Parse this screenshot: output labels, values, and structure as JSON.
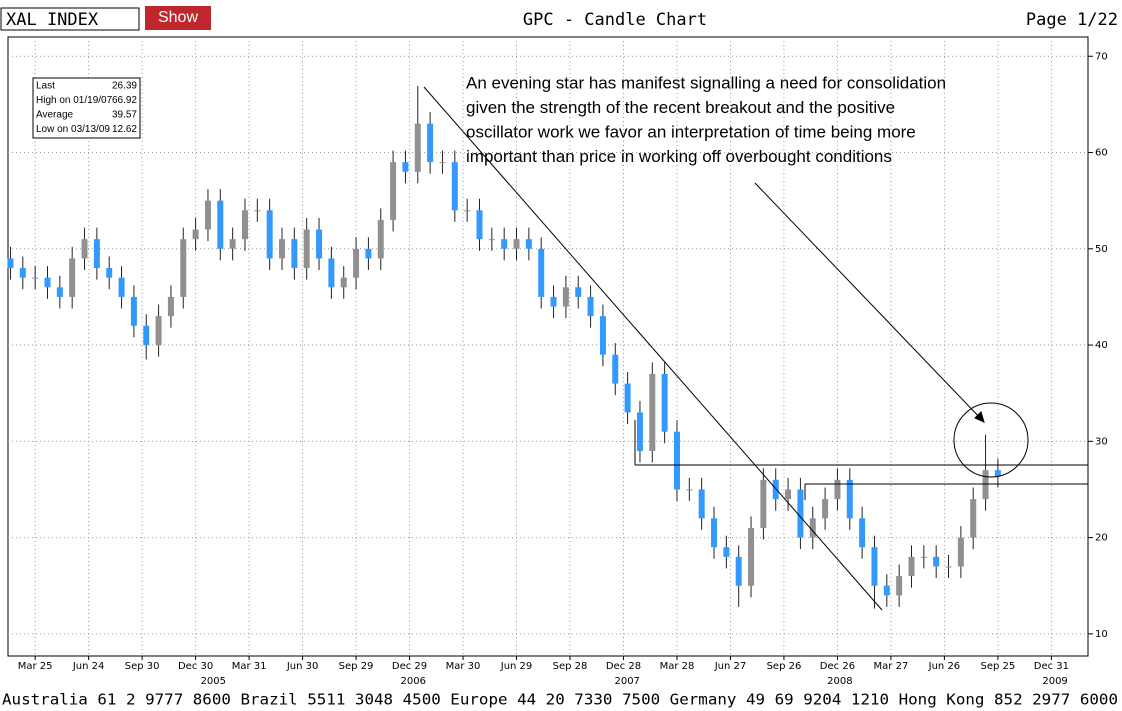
{
  "header": {
    "symbol": "XAL INDEX",
    "button": "Show",
    "title": "GPC - Candle Chart",
    "page": "Page 1/22"
  },
  "footer": "Australia 61 2 9777 8600 Brazil 5511 3048 4500 Europe 44 20 7330 7500 Germany 49 69 9204 1210 Hong Kong 852 2977 6000",
  "chart_data": {
    "type": "candlestick",
    "stats": [
      {
        "label": "Last",
        "value": 26.39
      },
      {
        "label": "High on 01/19/07",
        "value": 66.92
      },
      {
        "label": "Average",
        "value": 39.57
      },
      {
        "label": "Low on 03/13/09",
        "value": 12.62
      }
    ],
    "annotation": [
      "An evening star has manifest signalling a need for consolidation",
      "given the strength of the recent breakout and the positive",
      "oscillator work we favor an interpretation of time being more",
      "important than price in working off overbought conditions"
    ],
    "up_color": "#909090",
    "down_color": "#3399ff",
    "xlim": [
      -6.6,
      255.9
    ],
    "xticks": [
      {
        "value": 0,
        "label": "Mar 25"
      },
      {
        "value": 13,
        "label": "Jun 24"
      },
      {
        "value": 26,
        "label": "Sep 30"
      },
      {
        "value": 39,
        "label": "Dec 30"
      },
      {
        "value": 52,
        "label": "Mar 31"
      },
      {
        "value": 65,
        "label": "Jun 30"
      },
      {
        "value": 78,
        "label": "Sep 29"
      },
      {
        "value": 91,
        "label": "Dec 29"
      },
      {
        "value": 104,
        "label": "Mar 30"
      },
      {
        "value": 117,
        "label": "Jun 29"
      },
      {
        "value": 130,
        "label": "Sep 28"
      },
      {
        "value": 143,
        "label": "Dec 28"
      },
      {
        "value": 156,
        "label": "Mar 28"
      },
      {
        "value": 169,
        "label": "Jun 27"
      },
      {
        "value": 182,
        "label": "Sep 26"
      },
      {
        "value": 195,
        "label": "Dec 26"
      },
      {
        "value": 208,
        "label": "Mar 27"
      },
      {
        "value": 221,
        "label": "Jun 26"
      },
      {
        "value": 234,
        "label": "Sep 25"
      },
      {
        "value": 247,
        "label": "Dec 31"
      }
    ],
    "year_ticks": [
      {
        "value": 43.3,
        "label": "2005"
      },
      {
        "value": 91.9,
        "label": "2006"
      },
      {
        "value": 143.9,
        "label": "2007"
      },
      {
        "value": 195.6,
        "label": "2008"
      },
      {
        "value": 247.9,
        "label": "2009"
      }
    ],
    "ylim": [
      7.7,
      72
    ],
    "yticks": [
      10,
      20,
      30,
      40,
      50,
      60,
      70
    ],
    "grid": true,
    "x": [
      -6,
      -3,
      0,
      3,
      6,
      9,
      12,
      15,
      18,
      21,
      24,
      27,
      30,
      33,
      36,
      39,
      42,
      45,
      48,
      51,
      54,
      57,
      60,
      63,
      66,
      69,
      72,
      75,
      78,
      81,
      84,
      87,
      90,
      93,
      96,
      99,
      102,
      105,
      108,
      111,
      114,
      117,
      120,
      123,
      126,
      129,
      132,
      135,
      138,
      141,
      144,
      147,
      150,
      153,
      156,
      159,
      162,
      165,
      168,
      171,
      174,
      177,
      180,
      183,
      186,
      189,
      192,
      195,
      198,
      201,
      204,
      207,
      210,
      213,
      216,
      219,
      222,
      225,
      228,
      231,
      234
    ],
    "open": [
      49,
      48,
      47,
      47,
      46,
      45,
      49,
      51,
      48,
      47,
      45,
      42,
      40,
      43,
      45,
      51,
      52,
      55,
      50,
      51,
      54,
      54,
      49,
      51,
      48,
      52,
      49,
      46,
      47,
      50,
      49,
      53,
      59,
      58,
      63,
      59,
      59,
      54,
      54,
      51,
      51,
      50,
      51,
      50,
      45,
      44,
      46,
      45,
      43,
      39,
      36,
      33,
      29,
      37,
      31,
      25,
      25,
      22,
      19,
      18,
      15,
      21,
      26,
      24,
      25,
      20,
      22,
      24,
      26,
      22,
      19,
      15,
      14,
      16,
      18,
      18,
      17,
      17,
      20,
      24,
      27
    ],
    "high": [
      50.2,
      49.2,
      48.2,
      48.2,
      47.2,
      50.2,
      52.2,
      52.2,
      49.2,
      48.2,
      46.2,
      43.2,
      44.2,
      46.2,
      52.2,
      53.2,
      56.2,
      56.2,
      52.2,
      55.2,
      55.2,
      55.2,
      52.2,
      52.2,
      53.2,
      53.2,
      50.2,
      48.2,
      51.2,
      51.2,
      54.2,
      60.2,
      60.2,
      66.92,
      64.2,
      60.2,
      60.2,
      55.2,
      55.2,
      52.2,
      52.2,
      52.2,
      52.2,
      51.2,
      46.2,
      47.2,
      47.2,
      46.2,
      44.2,
      40.2,
      37.2,
      34.2,
      38.2,
      38.2,
      32.2,
      26.2,
      26.2,
      23.2,
      20.2,
      19.2,
      22.2,
      27.2,
      27.2,
      26.2,
      26.2,
      23.2,
      25.2,
      27.2,
      27.2,
      23.2,
      20.2,
      16.2,
      17.2,
      19.2,
      19.2,
      19.2,
      18.2,
      21.2,
      25.2,
      30.7,
      28.2
    ],
    "low": [
      46.8,
      45.8,
      45.8,
      44.8,
      43.8,
      43.8,
      47.8,
      46.8,
      45.8,
      43.8,
      40.8,
      38.5,
      38.8,
      41.8,
      43.8,
      49.8,
      50.8,
      48.8,
      48.8,
      49.8,
      52.8,
      47.8,
      47.8,
      46.8,
      46.8,
      47.8,
      44.8,
      44.8,
      45.8,
      47.8,
      47.8,
      51.8,
      56.8,
      56.8,
      57.8,
      57.8,
      52.8,
      52.8,
      49.8,
      49.8,
      48.8,
      48.8,
      48.8,
      43.8,
      42.8,
      42.8,
      43.8,
      41.8,
      37.8,
      34.8,
      31.8,
      27.8,
      27.8,
      29.8,
      23.8,
      23.8,
      20.8,
      17.8,
      16.8,
      12.8,
      13.8,
      19.8,
      22.8,
      22.8,
      18.8,
      18.8,
      20.8,
      22.8,
      20.8,
      17.8,
      12.62,
      12.8,
      12.8,
      14.8,
      16.8,
      15.8,
      15.8,
      15.8,
      18.8,
      22.8,
      25.2
    ],
    "close": [
      48,
      47,
      47,
      46,
      45,
      49,
      51,
      48,
      47,
      45,
      42,
      40,
      43,
      45,
      51,
      52,
      55,
      50,
      51,
      54,
      54,
      49,
      51,
      48,
      52,
      49,
      46,
      47,
      50,
      49,
      53,
      59,
      58,
      63,
      59,
      59,
      54,
      54,
      51,
      51,
      50,
      51,
      50,
      45,
      44,
      46,
      45,
      43,
      39,
      36,
      33,
      29,
      37,
      31,
      25,
      25,
      22,
      19,
      18,
      15,
      21,
      26,
      24,
      25,
      20,
      22,
      24,
      26,
      22,
      19,
      15,
      14,
      16,
      18,
      18,
      17,
      17,
      20,
      24,
      27,
      26.39
    ]
  }
}
